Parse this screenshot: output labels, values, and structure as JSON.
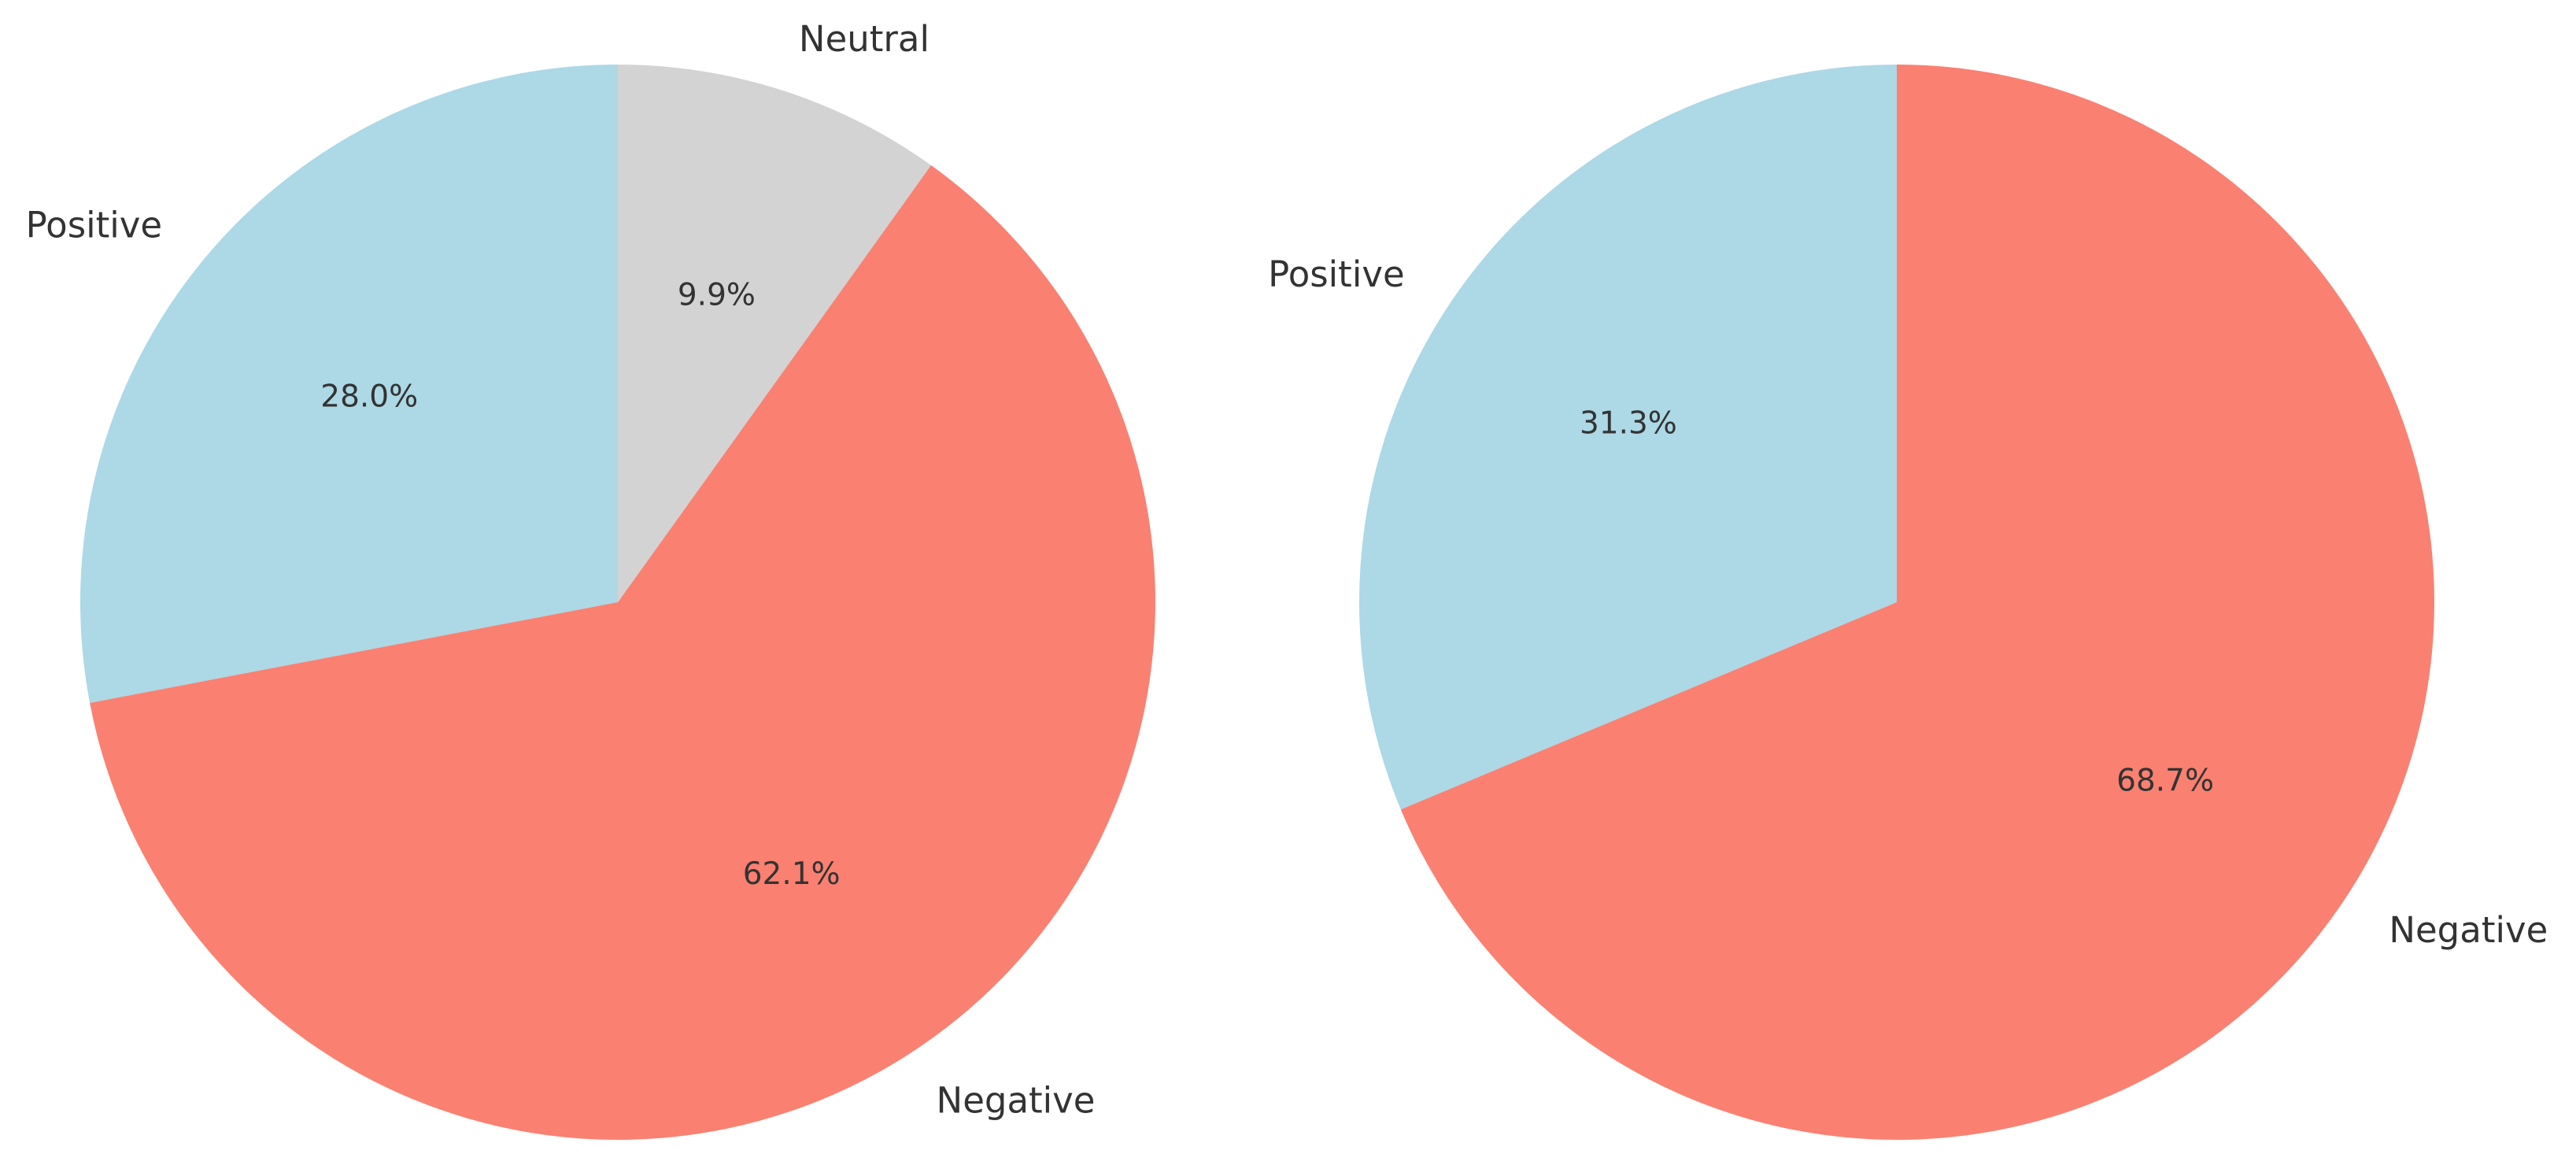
{
  "chart_data": [
    {
      "type": "pie",
      "start_angle_deg": 90,
      "direction": "counterclockwise",
      "slices": [
        {
          "label": "Positive",
          "value": 28.0,
          "pct_text": "28.0%",
          "color": "#add8e6"
        },
        {
          "label": "Negative",
          "value": 62.1,
          "pct_text": "62.1%",
          "color": "#fa8072"
        },
        {
          "label": "Neutral",
          "value": 9.9,
          "pct_text": "9.9%",
          "color": "#d3d3d3"
        }
      ]
    },
    {
      "type": "pie",
      "start_angle_deg": 90,
      "direction": "counterclockwise",
      "slices": [
        {
          "label": "Positive",
          "value": 31.3,
          "pct_text": "31.3%",
          "color": "#add8e6"
        },
        {
          "label": "Negative",
          "value": 68.7,
          "pct_text": "68.7%",
          "color": "#fa8072"
        }
      ]
    }
  ]
}
